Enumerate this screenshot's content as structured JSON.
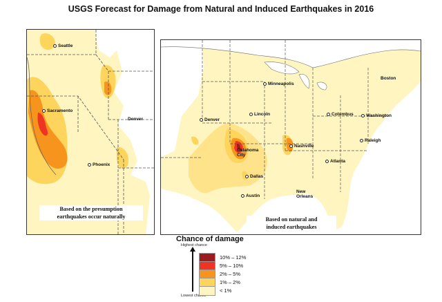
{
  "title": "USGS Forecast for Damage from Natural and Induced Earthquakes in 2016",
  "west_map": {
    "caption_lines": [
      "Based on the presumption",
      "earthquakes occur naturally"
    ],
    "cities": [
      "Seattle",
      "Sacramento",
      "Denver",
      "Phoenix"
    ]
  },
  "us_map": {
    "caption_lines": [
      "Based on natural and",
      "induced earthquakes"
    ],
    "cities": [
      "Minneapolis",
      "Boston",
      "Lincoln",
      "Columbus",
      "Washington",
      "Denver",
      "Raleigh",
      "Oklahoma",
      "City",
      "Nashville",
      "Atlanta",
      "Dallas",
      "Austin",
      "New",
      "Orleans"
    ]
  },
  "legend": {
    "title": "Chance of damage",
    "high_label": "Highest chance",
    "low_label": "Lowest chance",
    "classes": [
      {
        "label": "10% – 12%",
        "color": "#9b1b1e"
      },
      {
        "label": "5% – 10%",
        "color": "#ee3524"
      },
      {
        "label": "2% – 5%",
        "color": "#f7941d"
      },
      {
        "label": "1% – 2%",
        "color": "#fdd45c"
      },
      {
        "label": "< 1%",
        "color": "#fff5c0"
      }
    ]
  }
}
